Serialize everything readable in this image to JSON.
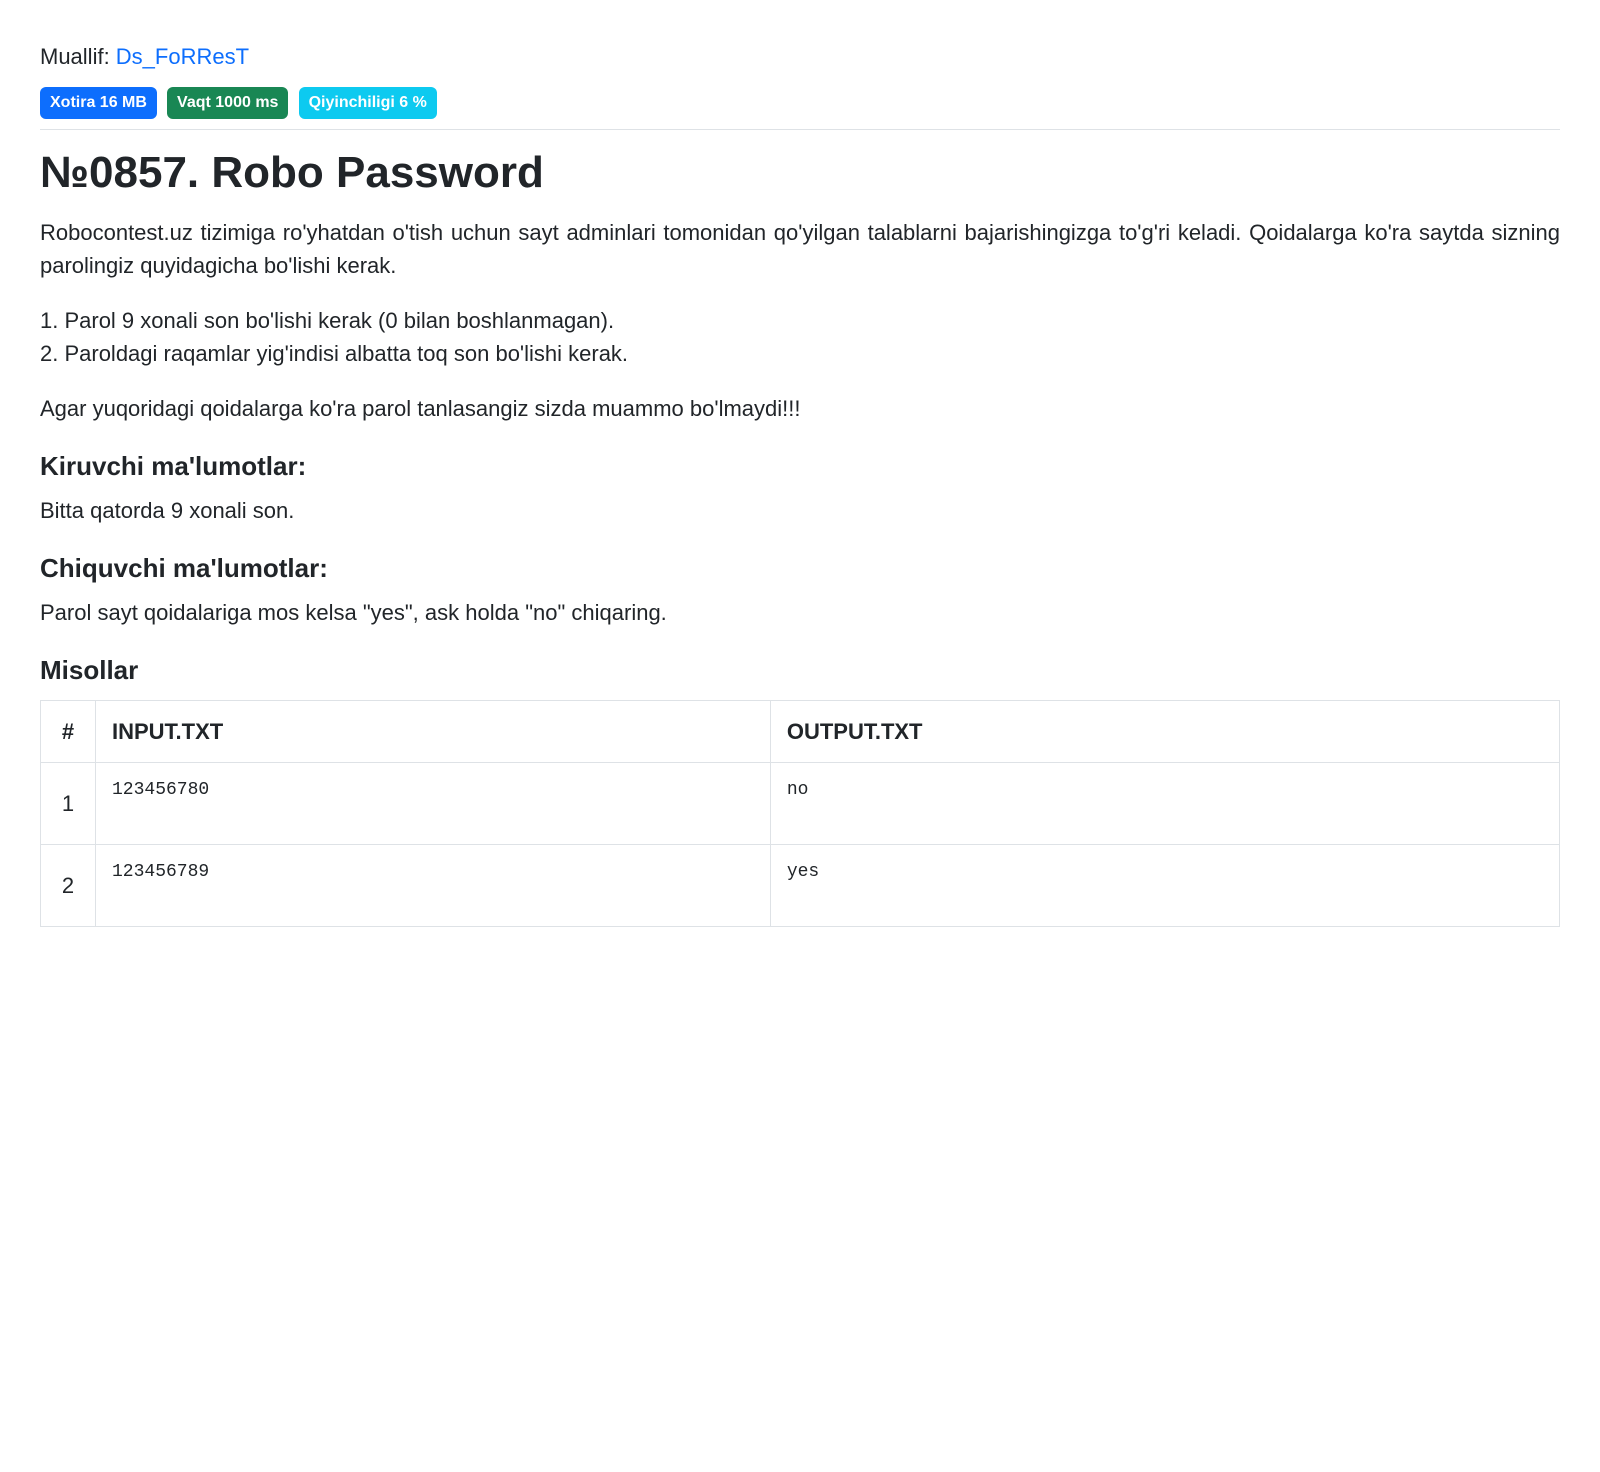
{
  "author": {
    "label": "Muallif: ",
    "name": "Ds_FoRResT"
  },
  "badges": {
    "memory": "Xotira 16 MB",
    "time": "Vaqt 1000 ms",
    "difficulty": "Qiyinchiligi 6 %"
  },
  "title": "№0857. Robo Password",
  "intro": "Robocontest.uz tizimiga ro'yhatdan o'tish uchun sayt adminlari tomonidan qo'yilgan talablarni bajarishingizga to'g'ri keladi. Qoidalarga ko'ra saytda sizning parolingiz quyidagicha bo'lishi kerak.",
  "rules": {
    "r1": "1. Parol 9 xonali son bo'lishi kerak (0 bilan boshlanmagan).",
    "r2": "2. Paroldagi raqamlar yig'indisi albatta toq son bo'lishi kerak."
  },
  "closing": "Agar yuqoridagi qoidalarga ko'ra parol tanlasangiz sizda muammo bo'lmaydi!!!",
  "input": {
    "heading": "Kiruvchi ma'lumotlar:",
    "text": "Bitta qatorda 9 xonali son."
  },
  "output": {
    "heading": "Chiquvchi ma'lumotlar:",
    "text": "Parol sayt qoidalariga mos kelsa \"yes\", ask holda \"no\" chiqaring."
  },
  "examples": {
    "heading": "Misollar",
    "columns": {
      "num": "#",
      "input": "INPUT.TXT",
      "output": "OUTPUT.TXT"
    },
    "rows": {
      "0": {
        "num": "1",
        "input": "123456780",
        "output": "no"
      },
      "1": {
        "num": "2",
        "input": "123456789",
        "output": "yes"
      }
    }
  }
}
